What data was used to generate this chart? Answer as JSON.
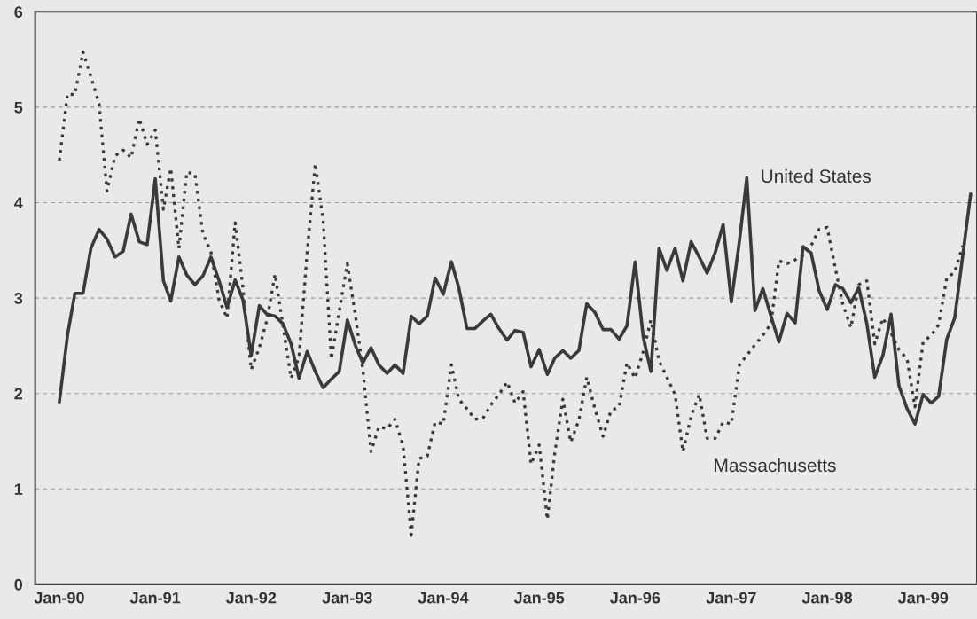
{
  "chart_data": {
    "type": "line",
    "xlim": [
      "1989-10-01",
      "1999-07-25"
    ],
    "xticks": [
      {
        "value": "1990-01",
        "label": "Jan-90"
      },
      {
        "value": "1991-01",
        "label": "Jan-91"
      },
      {
        "value": "1992-01",
        "label": "Jan-92"
      },
      {
        "value": "1993-01",
        "label": "Jan-93"
      },
      {
        "value": "1994-01",
        "label": "Jan-94"
      },
      {
        "value": "1995-01",
        "label": "Jan-95"
      },
      {
        "value": "1996-01",
        "label": "Jan-96"
      },
      {
        "value": "1997-01",
        "label": "Jan-97"
      },
      {
        "value": "1998-01",
        "label": "Jan-98"
      },
      {
        "value": "1999-01",
        "label": "Jan-99"
      }
    ],
    "ylim": [
      0,
      6
    ],
    "yticks": [
      0,
      1,
      2,
      3,
      4,
      5,
      6
    ],
    "grid": "y",
    "legend": false,
    "series": [
      {
        "name": "United States",
        "color": "#3a3a3a",
        "line_style": "solid",
        "x": [
          "1990-01",
          "1990-02",
          "1990-03",
          "1990-04",
          "1990-05",
          "1990-06",
          "1990-07",
          "1990-08",
          "1990-09",
          "1990-10",
          "1990-11",
          "1990-12",
          "1991-01",
          "1991-02",
          "1991-03",
          "1991-04",
          "1991-05",
          "1991-06",
          "1991-07",
          "1991-08",
          "1991-09",
          "1991-10",
          "1991-11",
          "1991-12",
          "1992-01",
          "1992-02",
          "1992-03",
          "1992-04",
          "1992-05",
          "1992-06",
          "1992-07",
          "1992-08",
          "1992-09",
          "1992-10",
          "1992-11",
          "1992-12",
          "1993-01",
          "1993-02",
          "1993-03",
          "1993-04",
          "1993-05",
          "1993-06",
          "1993-07",
          "1993-08",
          "1993-09",
          "1993-10",
          "1993-11",
          "1993-12",
          "1994-01",
          "1994-02",
          "1994-03",
          "1994-04",
          "1994-05",
          "1994-06",
          "1994-07",
          "1994-08",
          "1994-09",
          "1994-10",
          "1994-11",
          "1994-12",
          "1995-01",
          "1995-02",
          "1995-03",
          "1995-04",
          "1995-05",
          "1995-06",
          "1995-07",
          "1995-08",
          "1995-09",
          "1995-10",
          "1995-11",
          "1995-12",
          "1996-01",
          "1996-02",
          "1996-03",
          "1996-04",
          "1996-05",
          "1996-06",
          "1996-07",
          "1996-08",
          "1996-09",
          "1996-10",
          "1996-11",
          "1996-12",
          "1997-01",
          "1997-02",
          "1997-03",
          "1997-04",
          "1997-05",
          "1997-06",
          "1997-07",
          "1997-08",
          "1997-09",
          "1997-10",
          "1997-11",
          "1997-12",
          "1998-01",
          "1998-02",
          "1998-03",
          "1998-04",
          "1998-05",
          "1998-06",
          "1998-07",
          "1998-08",
          "1998-09",
          "1998-10",
          "1998-11",
          "1998-12",
          "1999-01",
          "1999-02",
          "1999-03",
          "1999-04",
          "1999-05",
          "1999-06",
          "1999-07"
        ],
        "values": [
          1.91,
          2.61,
          3.05,
          3.05,
          3.52,
          3.72,
          3.62,
          3.43,
          3.49,
          3.88,
          3.59,
          3.56,
          4.25,
          3.18,
          2.97,
          3.43,
          3.24,
          3.14,
          3.23,
          3.43,
          3.18,
          2.9,
          3.19,
          2.98,
          2.4,
          2.92,
          2.83,
          2.81,
          2.73,
          2.52,
          2.16,
          2.44,
          2.23,
          2.06,
          2.15,
          2.23,
          2.77,
          2.5,
          2.32,
          2.48,
          2.3,
          2.21,
          2.3,
          2.21,
          2.81,
          2.73,
          2.81,
          3.21,
          3.04,
          3.38,
          3.11,
          2.68,
          2.68,
          2.76,
          2.83,
          2.68,
          2.56,
          2.66,
          2.64,
          2.28,
          2.46,
          2.2,
          2.37,
          2.45,
          2.37,
          2.45,
          2.94,
          2.85,
          2.67,
          2.67,
          2.57,
          2.71,
          3.38,
          2.59,
          2.23,
          3.52,
          3.29,
          3.52,
          3.18,
          3.59,
          3.43,
          3.26,
          3.48,
          3.77,
          2.96,
          3.6,
          4.26,
          2.87,
          3.1,
          2.81,
          2.54,
          2.84,
          2.74,
          3.54,
          3.47,
          3.08,
          2.88,
          3.14,
          3.1,
          2.95,
          3.11,
          2.73,
          2.17,
          2.4,
          2.83,
          2.08,
          1.84,
          1.68,
          1.99,
          1.9,
          1.97,
          2.57,
          2.79,
          3.45,
          4.09
        ]
      },
      {
        "name": "Massachusetts",
        "color": "#3a3a3a",
        "line_style": "dotted",
        "x": [
          "1990-01",
          "1990-02",
          "1990-03",
          "1990-04",
          "1990-05",
          "1990-06",
          "1990-07",
          "1990-08",
          "1990-09",
          "1990-10",
          "1990-11",
          "1990-12",
          "1991-01",
          "1991-02",
          "1991-03",
          "1991-04",
          "1991-05",
          "1991-06",
          "1991-07",
          "1991-08",
          "1991-09",
          "1991-10",
          "1991-11",
          "1991-12",
          "1992-01",
          "1992-02",
          "1992-03",
          "1992-04",
          "1992-05",
          "1992-06",
          "1992-07",
          "1992-08",
          "1992-09",
          "1992-10",
          "1992-11",
          "1992-12",
          "1993-01",
          "1993-02",
          "1993-03",
          "1993-04",
          "1993-05",
          "1993-06",
          "1993-07",
          "1993-08",
          "1993-09",
          "1993-10",
          "1993-11",
          "1993-12",
          "1994-01",
          "1994-02",
          "1994-03",
          "1994-04",
          "1994-05",
          "1994-06",
          "1994-07",
          "1994-08",
          "1994-09",
          "1994-10",
          "1994-11",
          "1994-12",
          "1995-01",
          "1995-02",
          "1995-03",
          "1995-04",
          "1995-05",
          "1995-06",
          "1995-07",
          "1995-08",
          "1995-09",
          "1995-10",
          "1995-11",
          "1995-12",
          "1996-01",
          "1996-02",
          "1996-03",
          "1996-04",
          "1996-05",
          "1996-06",
          "1996-07",
          "1996-08",
          "1996-09",
          "1996-10",
          "1996-11",
          "1996-12",
          "1997-01",
          "1997-02",
          "1997-03",
          "1997-04",
          "1997-05",
          "1997-06",
          "1997-07",
          "1997-08",
          "1997-09",
          "1997-10",
          "1997-11",
          "1997-12",
          "1998-01",
          "1998-02",
          "1998-03",
          "1998-04",
          "1998-05",
          "1998-06",
          "1998-07",
          "1998-08",
          "1998-09",
          "1998-10",
          "1998-11",
          "1998-12",
          "1999-01",
          "1999-02",
          "1999-03",
          "1999-04",
          "1999-05",
          "1999-06"
        ],
        "values": [
          4.44,
          5.14,
          5.13,
          5.58,
          5.32,
          5.04,
          4.12,
          4.49,
          4.55,
          4.47,
          4.88,
          4.61,
          4.76,
          3.93,
          4.36,
          3.52,
          4.32,
          4.3,
          3.68,
          3.48,
          2.98,
          2.79,
          3.79,
          3.1,
          2.25,
          2.48,
          2.77,
          3.25,
          2.71,
          2.16,
          2.38,
          3.48,
          4.41,
          3.81,
          2.36,
          2.86,
          3.36,
          2.81,
          2.25,
          1.39,
          1.65,
          1.63,
          1.73,
          1.45,
          0.52,
          1.32,
          1.34,
          1.7,
          1.68,
          2.3,
          1.94,
          1.84,
          1.73,
          1.74,
          1.88,
          1.99,
          2.12,
          1.9,
          2.02,
          1.26,
          1.46,
          0.68,
          1.37,
          1.94,
          1.49,
          1.72,
          2.17,
          1.84,
          1.55,
          1.82,
          1.86,
          2.32,
          2.16,
          2.44,
          2.77,
          2.34,
          2.17,
          1.99,
          1.39,
          1.76,
          1.99,
          1.53,
          1.53,
          1.7,
          1.68,
          2.3,
          2.4,
          2.51,
          2.61,
          2.73,
          3.39,
          3.36,
          3.4,
          3.45,
          3.55,
          3.72,
          3.74,
          3.31,
          2.94,
          2.69,
          3.14,
          3.18,
          2.52,
          2.79,
          2.63,
          2.46,
          2.36,
          1.86,
          2.54,
          2.61,
          2.72,
          3.21,
          3.27,
          3.55
        ]
      }
    ]
  }
}
